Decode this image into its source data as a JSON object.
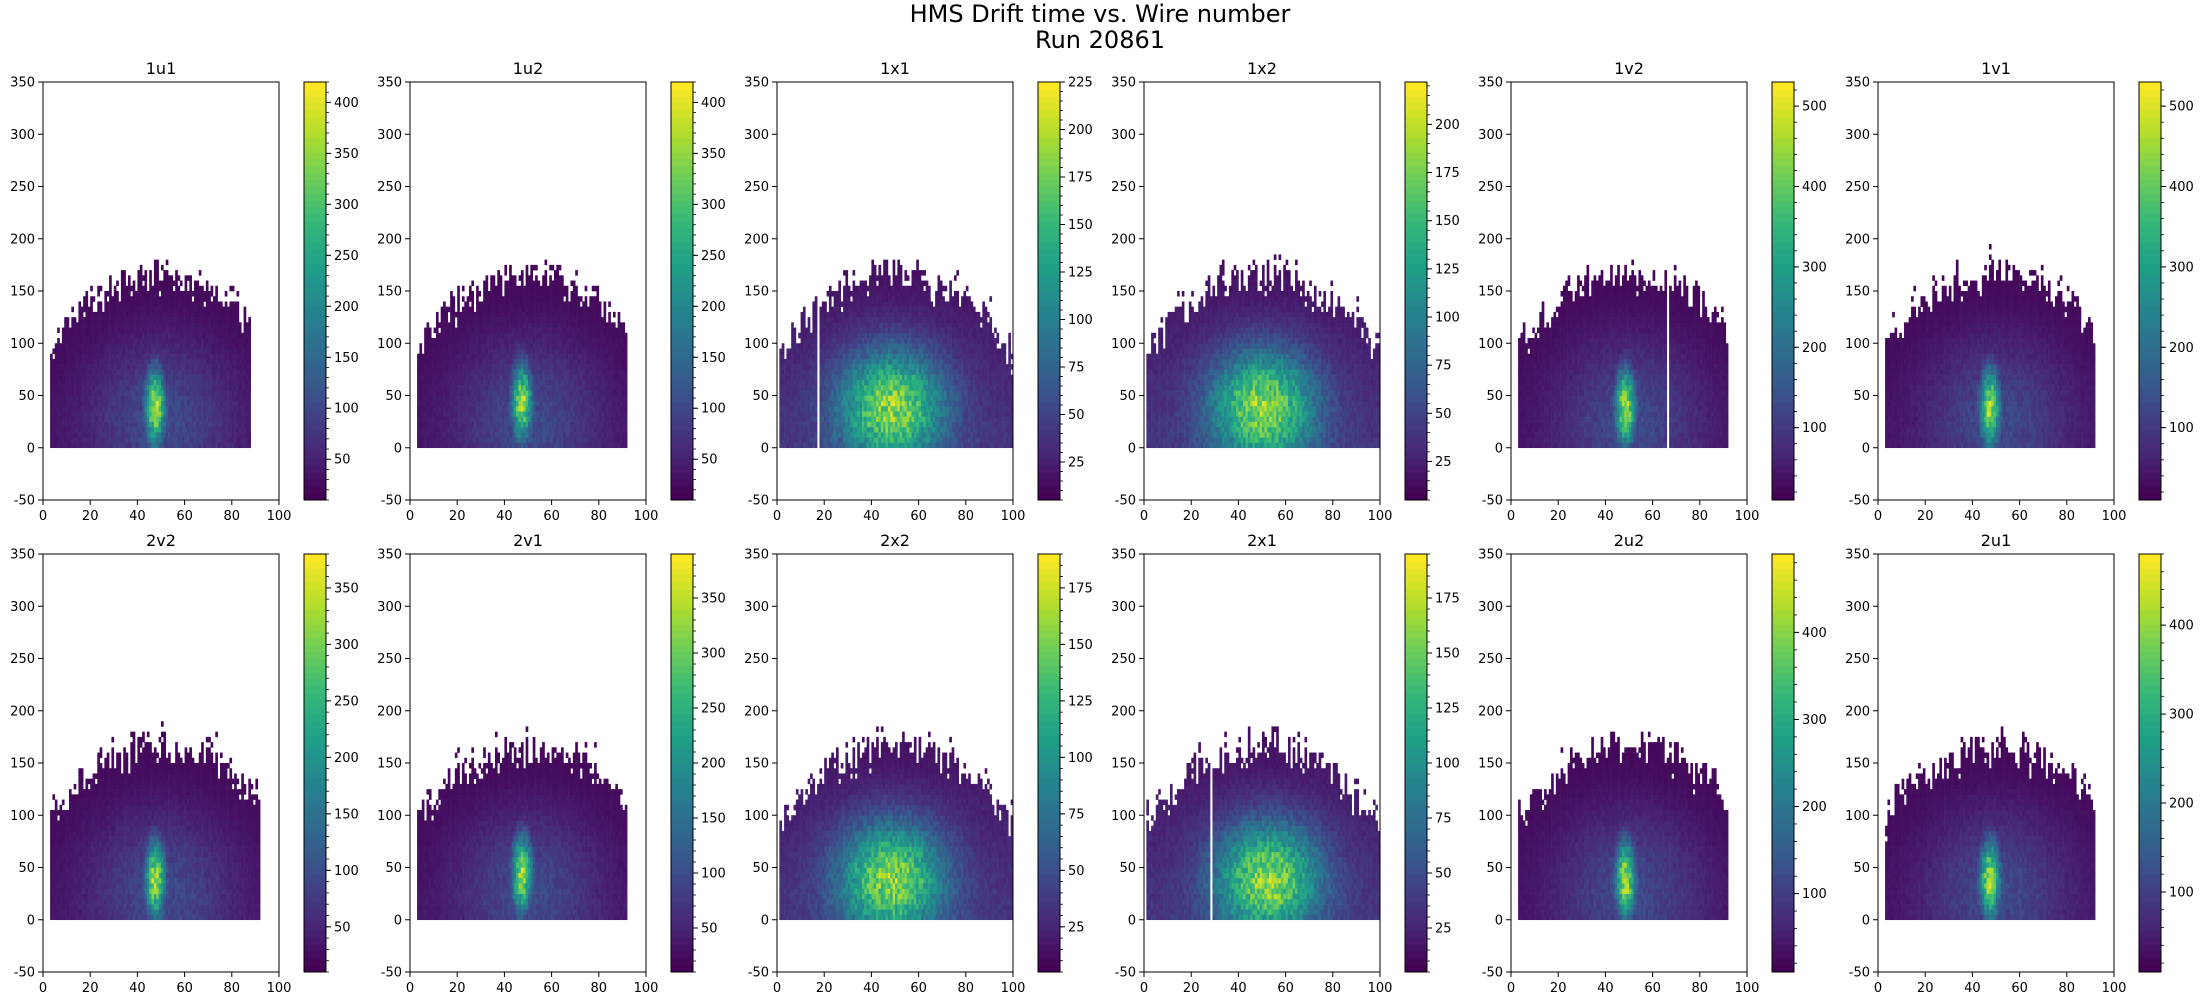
{
  "figure": {
    "title_line1": "HMS Drift time vs. Wire number",
    "title_line2": "Run 20861"
  },
  "colormap": [
    "#440154",
    "#482878",
    "#3e4989",
    "#31688e",
    "#26828e",
    "#1f9e89",
    "#35b779",
    "#6ece58",
    "#b5de2b",
    "#fde725"
  ],
  "chart_data": [
    {
      "type": "heatmap",
      "title": "1u1",
      "xlim": [
        0,
        100
      ],
      "ylim": [
        -50,
        350
      ],
      "xticks": [
        0,
        20,
        40,
        60,
        80,
        100
      ],
      "yticks": [
        -50,
        0,
        50,
        100,
        150,
        200,
        250,
        300,
        350
      ],
      "colorbar": {
        "min": 10,
        "max": 420,
        "ticks": [
          50,
          100,
          150,
          200,
          250,
          300,
          350,
          400
        ]
      },
      "distribution": {
        "peak_wire": 47,
        "peak_time": 40,
        "x_range": [
          3,
          88
        ],
        "spread": "narrow",
        "dead_wires": []
      }
    },
    {
      "type": "heatmap",
      "title": "1u2",
      "xlim": [
        0,
        100
      ],
      "ylim": [
        -50,
        350
      ],
      "xticks": [
        0,
        20,
        40,
        60,
        80,
        100
      ],
      "yticks": [
        -50,
        0,
        50,
        100,
        150,
        200,
        250,
        300,
        350
      ],
      "colorbar": {
        "min": 10,
        "max": 420,
        "ticks": [
          50,
          100,
          150,
          200,
          250,
          300,
          350,
          400
        ]
      },
      "distribution": {
        "peak_wire": 47,
        "peak_time": 45,
        "x_range": [
          3,
          92
        ],
        "spread": "narrow",
        "dead_wires": []
      }
    },
    {
      "type": "heatmap",
      "title": "1x1",
      "xlim": [
        0,
        100
      ],
      "ylim": [
        -50,
        350
      ],
      "xticks": [
        0,
        20,
        40,
        60,
        80,
        100
      ],
      "yticks": [
        -50,
        0,
        50,
        100,
        150,
        200,
        250,
        300,
        350
      ],
      "colorbar": {
        "min": 5,
        "max": 225,
        "ticks": [
          25,
          50,
          75,
          100,
          125,
          150,
          175,
          200,
          225
        ]
      },
      "distribution": {
        "peak_wire": 48,
        "peak_time": 45,
        "x_range": [
          1,
          100
        ],
        "spread": "wide",
        "dead_wires": [
          17
        ]
      }
    },
    {
      "type": "heatmap",
      "title": "1x2",
      "xlim": [
        0,
        100
      ],
      "ylim": [
        -50,
        350
      ],
      "xticks": [
        0,
        20,
        40,
        60,
        80,
        100
      ],
      "yticks": [
        -50,
        0,
        50,
        100,
        150,
        200,
        250,
        300,
        350
      ],
      "colorbar": {
        "min": 5,
        "max": 222,
        "ticks": [
          25,
          50,
          75,
          100,
          125,
          150,
          175,
          200
        ]
      },
      "distribution": {
        "peak_wire": 50,
        "peak_time": 45,
        "x_range": [
          1,
          100
        ],
        "spread": "wide",
        "dead_wires": []
      }
    },
    {
      "type": "heatmap",
      "title": "1v2",
      "xlim": [
        0,
        100
      ],
      "ylim": [
        -50,
        350
      ],
      "xticks": [
        0,
        20,
        40,
        60,
        80,
        100
      ],
      "yticks": [
        -50,
        0,
        50,
        100,
        150,
        200,
        250,
        300,
        350
      ],
      "colorbar": {
        "min": 10,
        "max": 530,
        "ticks": [
          100,
          200,
          300,
          400,
          500
        ]
      },
      "distribution": {
        "peak_wire": 48,
        "peak_time": 40,
        "x_range": [
          3,
          92
        ],
        "spread": "narrow",
        "dead_wires": [
          66
        ]
      }
    },
    {
      "type": "heatmap",
      "title": "1v1",
      "xlim": [
        0,
        100
      ],
      "ylim": [
        -50,
        350
      ],
      "xticks": [
        0,
        20,
        40,
        60,
        80,
        100
      ],
      "yticks": [
        -50,
        0,
        50,
        100,
        150,
        200,
        250,
        300,
        350
      ],
      "colorbar": {
        "min": 10,
        "max": 530,
        "ticks": [
          100,
          200,
          300,
          400,
          500
        ]
      },
      "distribution": {
        "peak_wire": 47,
        "peak_time": 40,
        "x_range": [
          3,
          92
        ],
        "spread": "narrow",
        "dead_wires": []
      }
    },
    {
      "type": "heatmap",
      "title": "2v2",
      "xlim": [
        0,
        100
      ],
      "ylim": [
        -50,
        350
      ],
      "xticks": [
        0,
        20,
        40,
        60,
        80,
        100
      ],
      "yticks": [
        -50,
        0,
        50,
        100,
        150,
        200,
        250,
        300,
        350
      ],
      "colorbar": {
        "min": 10,
        "max": 380,
        "ticks": [
          50,
          100,
          150,
          200,
          250,
          300,
          350
        ]
      },
      "distribution": {
        "peak_wire": 47,
        "peak_time": 40,
        "x_range": [
          3,
          92
        ],
        "spread": "narrow",
        "dead_wires": []
      }
    },
    {
      "type": "heatmap",
      "title": "2v1",
      "xlim": [
        0,
        100
      ],
      "ylim": [
        -50,
        350
      ],
      "xticks": [
        0,
        20,
        40,
        60,
        80,
        100
      ],
      "yticks": [
        -50,
        0,
        50,
        100,
        150,
        200,
        250,
        300,
        350
      ],
      "colorbar": {
        "min": 10,
        "max": 390,
        "ticks": [
          50,
          100,
          150,
          200,
          250,
          300,
          350
        ]
      },
      "distribution": {
        "peak_wire": 47,
        "peak_time": 45,
        "x_range": [
          3,
          92
        ],
        "spread": "narrow",
        "dead_wires": []
      }
    },
    {
      "type": "heatmap",
      "title": "2x2",
      "xlim": [
        0,
        100
      ],
      "ylim": [
        -50,
        350
      ],
      "xticks": [
        0,
        20,
        40,
        60,
        80,
        100
      ],
      "yticks": [
        -50,
        0,
        50,
        100,
        150,
        200,
        250,
        300,
        350
      ],
      "colorbar": {
        "min": 5,
        "max": 190,
        "ticks": [
          25,
          50,
          75,
          100,
          125,
          150,
          175
        ]
      },
      "distribution": {
        "peak_wire": 48,
        "peak_time": 45,
        "x_range": [
          1,
          100
        ],
        "spread": "wide",
        "dead_wires": []
      }
    },
    {
      "type": "heatmap",
      "title": "2x1",
      "xlim": [
        0,
        100
      ],
      "ylim": [
        -50,
        350
      ],
      "xticks": [
        0,
        20,
        40,
        60,
        80,
        100
      ],
      "yticks": [
        -50,
        0,
        50,
        100,
        150,
        200,
        250,
        300,
        350
      ],
      "colorbar": {
        "min": 5,
        "max": 195,
        "ticks": [
          25,
          50,
          75,
          100,
          125,
          150,
          175
        ]
      },
      "distribution": {
        "peak_wire": 52,
        "peak_time": 45,
        "x_range": [
          1,
          100
        ],
        "spread": "wide",
        "dead_wires": [
          28
        ]
      }
    },
    {
      "type": "heatmap",
      "title": "2u2",
      "xlim": [
        0,
        100
      ],
      "ylim": [
        -50,
        350
      ],
      "xticks": [
        0,
        20,
        40,
        60,
        80,
        100
      ],
      "yticks": [
        -50,
        0,
        50,
        100,
        150,
        200,
        250,
        300,
        350
      ],
      "colorbar": {
        "min": 10,
        "max": 490,
        "ticks": [
          100,
          200,
          300,
          400
        ]
      },
      "distribution": {
        "peak_wire": 48,
        "peak_time": 40,
        "x_range": [
          3,
          92
        ],
        "spread": "narrow",
        "dead_wires": []
      }
    },
    {
      "type": "heatmap",
      "title": "2u1",
      "xlim": [
        0,
        100
      ],
      "ylim": [
        -50,
        350
      ],
      "xticks": [
        0,
        20,
        40,
        60,
        80,
        100
      ],
      "yticks": [
        -50,
        0,
        50,
        100,
        150,
        200,
        250,
        300,
        350
      ],
      "colorbar": {
        "min": 10,
        "max": 480,
        "ticks": [
          100,
          200,
          300,
          400
        ]
      },
      "distribution": {
        "peak_wire": 47,
        "peak_time": 40,
        "x_range": [
          3,
          92
        ],
        "spread": "narrow",
        "dead_wires": []
      }
    }
  ]
}
